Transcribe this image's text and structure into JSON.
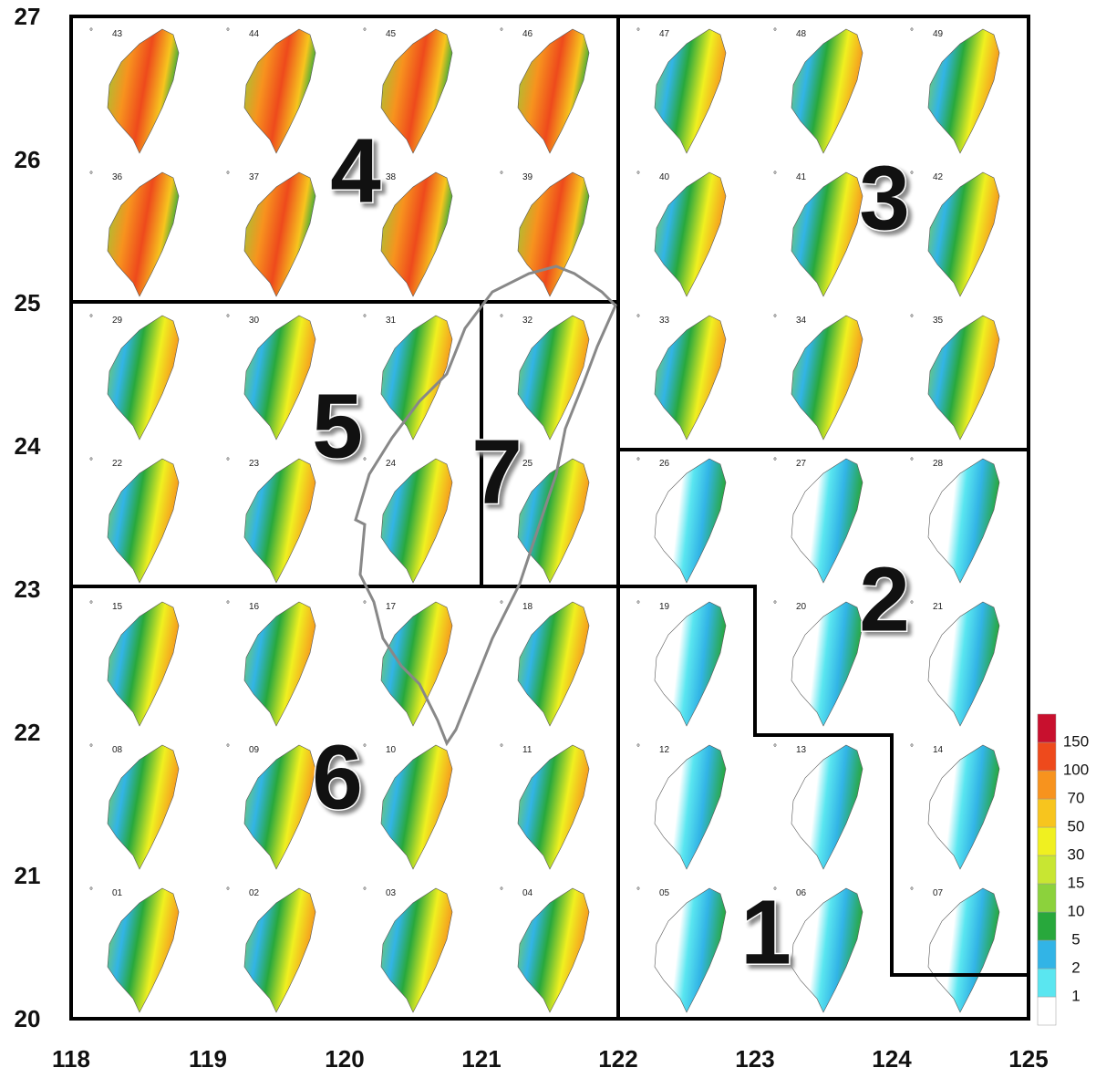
{
  "map": {
    "xlim": [
      118,
      125
    ],
    "ylim": [
      20,
      27
    ],
    "xticks": [
      118,
      119,
      120,
      121,
      122,
      123,
      124,
      125
    ],
    "yticks": [
      20,
      21,
      22,
      23,
      24,
      25,
      26,
      27
    ],
    "panels": [
      "01",
      "02",
      "03",
      "04",
      "05",
      "06",
      "07",
      "08",
      "09",
      "10",
      "11",
      "12",
      "13",
      "14",
      "15",
      "16",
      "17",
      "18",
      "19",
      "20",
      "21",
      "22",
      "23",
      "24",
      "25",
      "26",
      "27",
      "28",
      "29",
      "30",
      "31",
      "32",
      "33",
      "34",
      "35",
      "36",
      "37",
      "38",
      "39",
      "40",
      "41",
      "42",
      "43",
      "44",
      "45",
      "46",
      "47",
      "48",
      "49"
    ],
    "regions": [
      "1",
      "2",
      "3",
      "4",
      "5",
      "6",
      "7"
    ],
    "legend": {
      "levels": [
        1,
        2,
        5,
        10,
        15,
        30,
        50,
        70,
        100,
        150
      ],
      "colors": [
        "#ffffff",
        "#5ae6f0",
        "#32b4e6",
        "#28a83c",
        "#8cd23c",
        "#c8e632",
        "#f0f020",
        "#f7c51e",
        "#f7931e",
        "#ee4a1c",
        "#c8102e"
      ]
    }
  }
}
